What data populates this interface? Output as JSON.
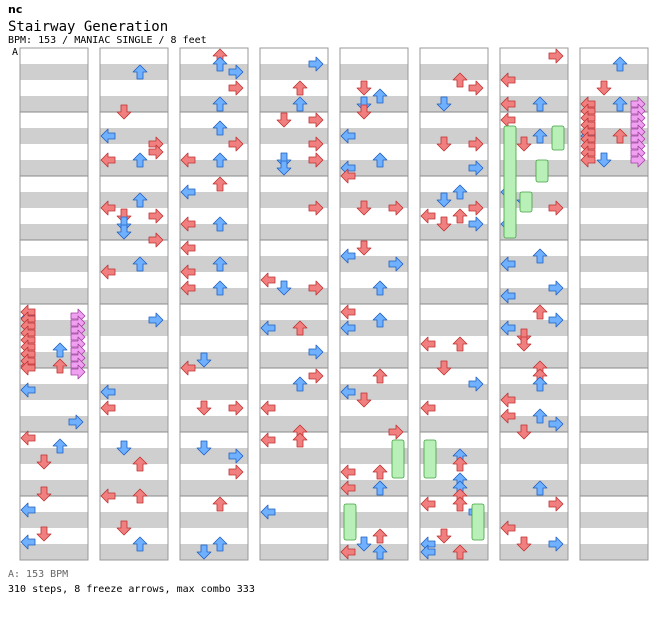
{
  "header": {
    "tag": "nc",
    "title": "Stairway Generation",
    "info": "BPM: 153 / MANIAC SINGLE / 8 feet",
    "section_marker": "A"
  },
  "footer": {
    "bpm_line": "A: 153 BPM",
    "summary": "310 steps, 8 freeze arrows, max combo 333"
  },
  "colors": {
    "quarter": "#f08080",
    "eighth": "#6fb0ff",
    "sixteenth": "#f0a0f0",
    "freeze": "#b8f0b8",
    "band": "#cfcfcf"
  },
  "chart_data": {
    "type": "step-chart",
    "lanes": [
      "left",
      "down",
      "up",
      "right"
    ],
    "columns": 8,
    "measures_per_column": 8,
    "total_steps": 310,
    "freeze_arrows": 8,
    "max_combo": 333
  }
}
